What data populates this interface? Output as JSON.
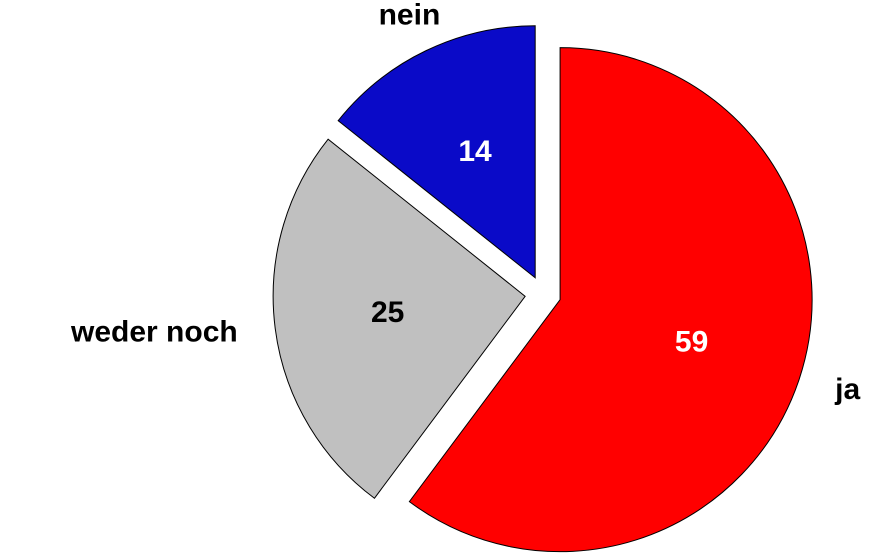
{
  "chart_data": {
    "type": "pie",
    "categories": [
      "ja",
      "weder noch",
      "nein"
    ],
    "values": [
      59,
      25,
      14
    ],
    "colors": [
      "#ff0000",
      "#c0c0c0",
      "#0a0ac8"
    ],
    "value_label_colors": [
      "#ffffff",
      "#000000",
      "#ffffff"
    ],
    "start_angle": 0,
    "direction": "clockwise",
    "exploded": true
  }
}
